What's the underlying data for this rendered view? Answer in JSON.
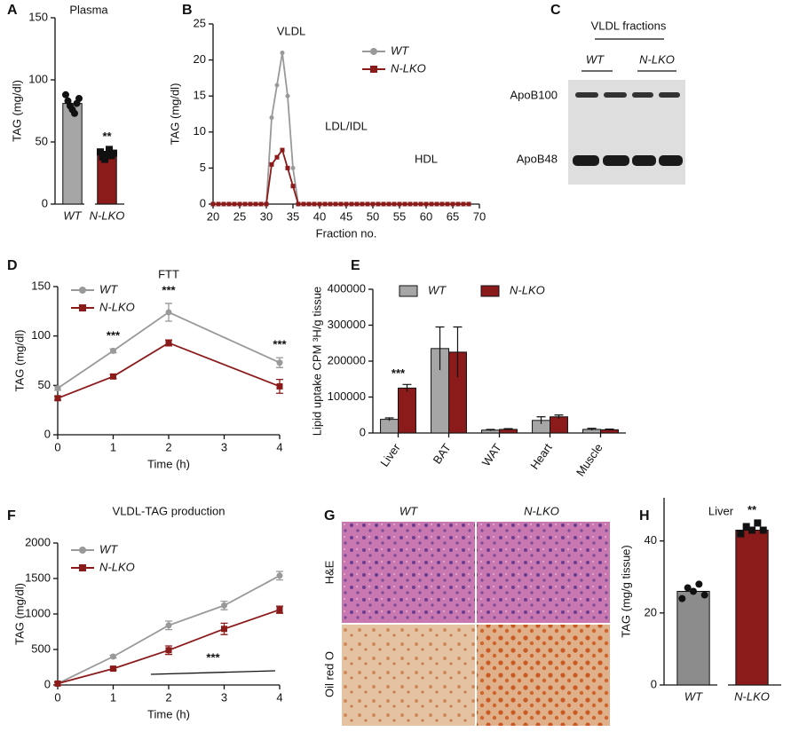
{
  "chart_data": [
    {
      "panel": "A",
      "type": "bar",
      "title": "Plasma",
      "ylabel": "TAG (mg/dl)",
      "categories": [
        "WT",
        "N-LKO"
      ],
      "values": [
        81,
        40
      ],
      "colors": [
        "#a6a6a6",
        "#8b1a1a"
      ],
      "points": [
        [
          88,
          83,
          79,
          76,
          73,
          81,
          85
        ],
        [
          42,
          38,
          36,
          40,
          44,
          39,
          41
        ]
      ],
      "significance": [
        null,
        "**"
      ],
      "ylim": [
        0,
        150
      ],
      "yticks": [
        0,
        50,
        100,
        150
      ]
    },
    {
      "panel": "B",
      "type": "line",
      "ylabel": "TAG (mg/dl)",
      "xlabel": "Fraction no.",
      "x": [
        20,
        21,
        22,
        23,
        24,
        25,
        26,
        27,
        28,
        29,
        30,
        31,
        32,
        33,
        34,
        35,
        36,
        37,
        38,
        39,
        40,
        41,
        42,
        43,
        44,
        45,
        46,
        47,
        48,
        49,
        50,
        51,
        52,
        53,
        54,
        55,
        56,
        57,
        58,
        59,
        60,
        61,
        62,
        63,
        64,
        65,
        66,
        67,
        68
      ],
      "series": [
        {
          "name": "WT",
          "color": "#999999",
          "marker": "circle",
          "values": [
            0,
            0,
            0,
            0,
            0,
            0,
            0,
            0,
            0,
            0,
            0,
            12,
            16.5,
            21,
            15,
            5,
            0,
            0,
            0,
            0,
            0,
            0,
            0,
            0,
            0,
            0,
            0,
            0,
            0,
            0,
            0,
            0,
            0,
            0,
            0,
            0,
            0,
            0,
            0,
            0,
            0,
            0,
            0,
            0,
            0,
            0,
            0,
            0,
            0
          ]
        },
        {
          "name": "N-LKO",
          "color": "#8b1a1a",
          "marker": "square",
          "values": [
            0,
            0,
            0,
            0,
            0,
            0,
            0,
            0,
            0,
            0,
            0,
            5.5,
            6.5,
            7.5,
            5,
            2.5,
            0,
            0,
            0,
            0,
            0,
            0,
            0,
            0,
            0,
            0,
            0,
            0,
            0,
            0,
            0,
            0,
            0,
            0,
            0,
            0,
            0,
            0,
            0,
            0,
            0,
            0,
            0,
            0,
            0,
            0,
            0,
            0,
            0
          ]
        }
      ],
      "region_labels": [
        "VLDL",
        "LDL/IDL",
        "HDL"
      ],
      "xlim": [
        20,
        70
      ],
      "xticks": [
        20,
        25,
        30,
        35,
        40,
        45,
        50,
        55,
        60,
        65,
        70
      ],
      "ylim": [
        0,
        25
      ],
      "yticks": [
        0,
        5,
        10,
        15,
        20,
        25
      ]
    },
    {
      "panel": "C",
      "type": "blot",
      "title": "VLDL fractions",
      "lanes": [
        "WT",
        "N-LKO"
      ],
      "bands": [
        "ApoB100",
        "ApoB48"
      ]
    },
    {
      "panel": "D",
      "type": "line",
      "title": "FTT",
      "ylabel": "TAG (mg/dl)",
      "xlabel": "Time (h)",
      "x": [
        0,
        1,
        2,
        4
      ],
      "series": [
        {
          "name": "WT",
          "color": "#999999",
          "marker": "circle",
          "values": [
            47,
            85,
            124,
            73
          ],
          "errors": [
            2,
            2,
            9,
            5
          ]
        },
        {
          "name": "N-LKO",
          "color": "#8b1a1a",
          "marker": "square",
          "values": [
            37,
            59,
            93,
            49
          ],
          "errors": [
            2,
            2,
            3,
            7
          ]
        }
      ],
      "significance": [
        null,
        "***",
        "***",
        "***"
      ],
      "xlim": [
        0,
        4
      ],
      "xticks": [
        0,
        1,
        2,
        3,
        4
      ],
      "ylim": [
        0,
        150
      ],
      "yticks": [
        0,
        50,
        100,
        150
      ]
    },
    {
      "panel": "E",
      "type": "bar",
      "ylabel": "Lipid uptake CPM ³H/g tissue",
      "categories": [
        "Liver",
        "BAT",
        "WAT",
        "Heart",
        "Muscle"
      ],
      "series": [
        {
          "name": "WT",
          "color": "#a6a6a6",
          "values": [
            38000,
            235000,
            8000,
            35000,
            10000
          ],
          "errors": [
            4000,
            60000,
            2000,
            10000,
            3000
          ]
        },
        {
          "name": "N-LKO",
          "color": "#8b1a1a",
          "values": [
            125000,
            225000,
            10000,
            45000,
            9000
          ],
          "errors": [
            10000,
            70000,
            2000,
            5000,
            2000
          ]
        }
      ],
      "significance": [
        "***",
        null,
        null,
        null,
        null
      ],
      "ylim": [
        0,
        400000
      ],
      "yticks": [
        0,
        100000,
        200000,
        300000,
        400000
      ]
    },
    {
      "panel": "F",
      "type": "line",
      "title": "VLDL-TAG production",
      "ylabel": "TAG (mg/dl)",
      "xlabel": "Time (h)",
      "x": [
        0,
        1,
        2,
        3,
        4
      ],
      "series": [
        {
          "name": "WT",
          "color": "#999999",
          "marker": "circle",
          "values": [
            20,
            400,
            840,
            1120,
            1540
          ],
          "errors": [
            20,
            20,
            60,
            60,
            60
          ]
        },
        {
          "name": "N-LKO",
          "color": "#8b1a1a",
          "marker": "square",
          "values": [
            20,
            230,
            490,
            790,
            1060
          ],
          "errors": [
            20,
            20,
            60,
            80,
            50
          ]
        }
      ],
      "annotation": "***",
      "xlim": [
        0,
        4
      ],
      "xticks": [
        0,
        1,
        2,
        3,
        4
      ],
      "ylim": [
        0,
        2000
      ],
      "yticks": [
        0,
        500,
        1000,
        1500,
        2000
      ]
    },
    {
      "panel": "G",
      "type": "micrograph",
      "columns": [
        "WT",
        "N-LKO"
      ],
      "rows": [
        "H&E",
        "Oil red O"
      ]
    },
    {
      "panel": "H",
      "type": "bar",
      "title": "Liver",
      "ylabel": "TAG (mg/g tissue)",
      "categories": [
        "WT",
        "N-LKO"
      ],
      "values": [
        26,
        43
      ],
      "colors": [
        "#8c8c8c",
        "#8b1a1a"
      ],
      "points": [
        [
          24,
          27,
          26,
          28,
          25
        ],
        [
          42,
          44,
          43,
          45,
          43
        ]
      ],
      "significance": [
        null,
        "**"
      ],
      "ylim": [
        0,
        52
      ],
      "yticks": [
        0,
        20,
        40
      ]
    }
  ]
}
